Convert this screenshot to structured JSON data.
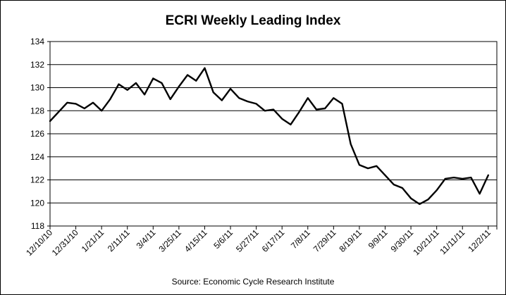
{
  "chart_data": {
    "type": "line",
    "title": "ECRI Weekly Leading Index",
    "source": "Source:  Economic Cycle Research Institute",
    "xlabel": "",
    "ylabel": "",
    "ylim": [
      118,
      134
    ],
    "yticks": [
      118,
      120,
      122,
      124,
      126,
      128,
      130,
      132,
      134
    ],
    "grid": "horizontal",
    "legend": "none",
    "x_tick_labels": [
      "12/10/10",
      "12/31/10",
      "1/21/11",
      "2/11/11",
      "3/4/11",
      "3/25/11",
      "4/15/11",
      "5/6/11",
      "5/27/11",
      "6/17/11",
      "7/8/11",
      "7/29/11",
      "8/19/11",
      "9/9/11",
      "9/30/11",
      "10/21/11",
      "11/11/11",
      "12/2/11"
    ],
    "weeks_per_tick": 3,
    "series": [
      {
        "color": "#000000",
        "x": [
          "12/10/10",
          "12/17/10",
          "12/24/10",
          "12/31/10",
          "1/7/11",
          "1/14/11",
          "1/21/11",
          "1/28/11",
          "2/4/11",
          "2/11/11",
          "2/18/11",
          "2/25/11",
          "3/4/11",
          "3/11/11",
          "3/18/11",
          "3/25/11",
          "4/1/11",
          "4/8/11",
          "4/15/11",
          "4/22/11",
          "4/29/11",
          "5/6/11",
          "5/13/11",
          "5/20/11",
          "5/27/11",
          "6/3/11",
          "6/10/11",
          "6/17/11",
          "6/24/11",
          "7/1/11",
          "7/8/11",
          "7/15/11",
          "7/22/11",
          "7/29/11",
          "8/5/11",
          "8/12/11",
          "8/19/11",
          "8/26/11",
          "9/2/11",
          "9/9/11",
          "9/16/11",
          "9/23/11",
          "9/30/11",
          "10/7/11",
          "10/14/11",
          "10/21/11",
          "10/28/11",
          "11/4/11",
          "11/11/11",
          "11/18/11",
          "11/25/11",
          "12/2/11",
          "12/9/11"
        ],
        "values": [
          127.1,
          127.9,
          128.7,
          128.6,
          128.2,
          128.7,
          128.0,
          129.0,
          130.3,
          129.8,
          130.4,
          129.4,
          130.8,
          130.4,
          129.0,
          130.1,
          131.1,
          130.6,
          131.7,
          129.6,
          128.9,
          129.9,
          129.1,
          128.8,
          128.6,
          128.0,
          128.1,
          127.3,
          126.8,
          127.9,
          129.1,
          128.1,
          128.2,
          129.1,
          128.6,
          125.1,
          123.3,
          123.0,
          123.2,
          122.4,
          121.6,
          121.3,
          120.4,
          119.9,
          120.3,
          121.1,
          122.1,
          122.2,
          122.1,
          122.2,
          120.8,
          122.4,
          null
        ]
      }
    ]
  }
}
